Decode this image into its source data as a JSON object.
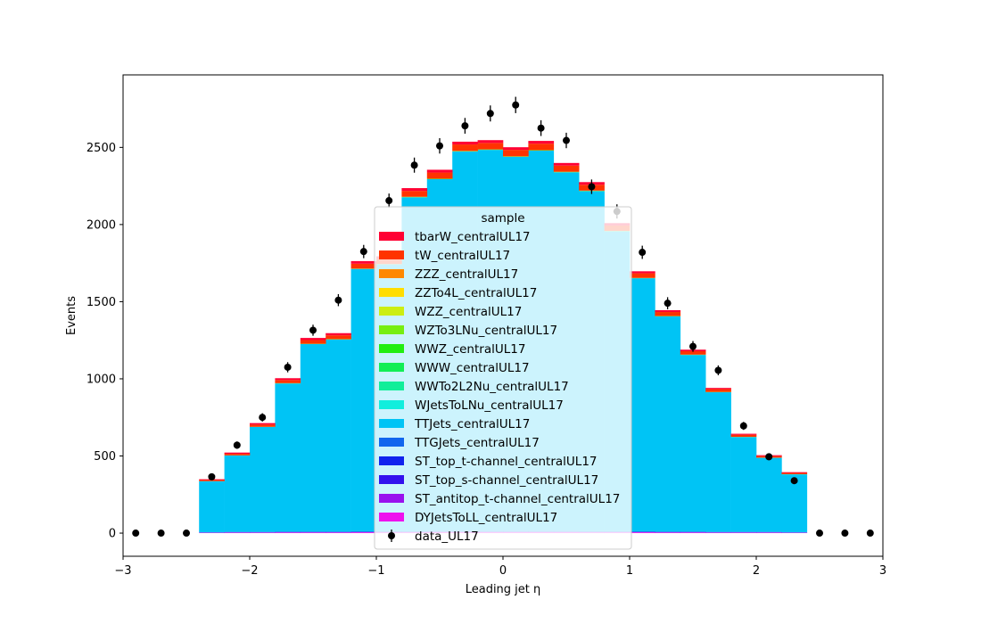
{
  "chart_data": {
    "type": "bar",
    "title": "",
    "xlabel": "Leading jet  η",
    "ylabel": "Events",
    "xlim": [
      -3,
      3
    ],
    "ylim": [
      -150,
      2970
    ],
    "xticks": [
      -3,
      -2,
      -1,
      0,
      1,
      2,
      3
    ],
    "xtick_labels": [
      "−3",
      "−2",
      "−1",
      "0",
      "1",
      "2",
      "3"
    ],
    "yticks": [
      0,
      500,
      1000,
      1500,
      2000,
      2500
    ],
    "ytick_labels": [
      "0",
      "500",
      "1000",
      "1500",
      "2000",
      "2500"
    ],
    "bin_edges": [
      -2.4,
      -2.2,
      -2.0,
      -1.8,
      -1.6,
      -1.4,
      -1.2,
      -1.0,
      -0.8,
      -0.6,
      -0.4,
      -0.2,
      0.0,
      0.2,
      0.4,
      0.6,
      0.8,
      1.0,
      1.2,
      1.4,
      1.6,
      1.8,
      2.0,
      2.2,
      2.4
    ],
    "grid": false,
    "legend": {
      "title": "sample",
      "placement": "center"
    },
    "stack_order": "bottom-to-top",
    "series": [
      {
        "name": "DYJetsToLL_centralUL17",
        "color": "#ee11ee",
        "values": [
          2,
          3,
          3,
          4,
          4,
          4,
          5,
          5,
          5,
          6,
          6,
          6,
          6,
          6,
          6,
          5,
          5,
          5,
          4,
          4,
          3,
          3,
          3,
          2
        ]
      },
      {
        "name": "ST_antitop_t-channel_centralUL17",
        "color": "#9911ee",
        "values": [
          1,
          1,
          1,
          1,
          1,
          1,
          1,
          1,
          1,
          1,
          1,
          1,
          1,
          1,
          1,
          1,
          1,
          1,
          1,
          1,
          1,
          1,
          1,
          1
        ]
      },
      {
        "name": "ST_top_s-channel_centralUL17",
        "color": "#3311ee",
        "values": [
          0,
          0,
          0,
          0,
          0,
          0,
          0,
          0,
          0,
          0,
          0,
          0,
          0,
          0,
          0,
          0,
          0,
          0,
          0,
          0,
          0,
          0,
          0,
          0
        ]
      },
      {
        "name": "ST_top_t-channel_centralUL17",
        "color": "#1122ee",
        "values": [
          1,
          1,
          1,
          1,
          1,
          1,
          1,
          1,
          1,
          1,
          1,
          1,
          1,
          1,
          1,
          1,
          1,
          1,
          1,
          1,
          1,
          1,
          1,
          1
        ]
      },
      {
        "name": "TTGJets_centralUL17",
        "color": "#1166ee",
        "values": [
          2,
          3,
          3,
          4,
          4,
          4,
          5,
          5,
          5,
          6,
          6,
          6,
          6,
          6,
          6,
          5,
          5,
          5,
          4,
          4,
          3,
          3,
          3,
          2
        ]
      },
      {
        "name": "TTJets_centralUL17",
        "color": "#00c4f5",
        "values": [
          330,
          495,
          680,
          960,
          1215,
          1245,
          1700,
          1730,
          2165,
          2280,
          2460,
          2470,
          2425,
          2465,
          2325,
          2205,
          1945,
          1640,
          1395,
          1145,
          905,
          615,
          480,
          375
        ]
      },
      {
        "name": "WJetsToLNu_centralUL17",
        "color": "#11eedd",
        "values": [
          0,
          0,
          0,
          0,
          0,
          0,
          0,
          0,
          0,
          0,
          0,
          0,
          0,
          0,
          0,
          0,
          0,
          0,
          0,
          0,
          0,
          0,
          0,
          0
        ]
      },
      {
        "name": "WWTo2L2Nu_centralUL17",
        "color": "#11ee99",
        "values": [
          0,
          0,
          0,
          0,
          0,
          0,
          0,
          0,
          0,
          0,
          0,
          0,
          0,
          0,
          0,
          0,
          0,
          0,
          0,
          0,
          0,
          0,
          0,
          0
        ]
      },
      {
        "name": "WWW_centralUL17",
        "color": "#11ee55",
        "values": [
          0,
          0,
          0,
          0,
          0,
          0,
          0,
          0,
          0,
          0,
          0,
          0,
          0,
          0,
          0,
          0,
          0,
          0,
          0,
          0,
          0,
          0,
          0,
          0
        ]
      },
      {
        "name": "WWZ_centralUL17",
        "color": "#22ee11",
        "values": [
          0,
          0,
          0,
          0,
          0,
          0,
          0,
          0,
          0,
          0,
          0,
          0,
          0,
          0,
          0,
          0,
          0,
          0,
          0,
          0,
          0,
          0,
          0,
          0
        ]
      },
      {
        "name": "WZTo3LNu_centralUL17",
        "color": "#77ee11",
        "values": [
          1,
          1,
          1,
          2,
          2,
          2,
          2,
          2,
          3,
          3,
          3,
          3,
          3,
          3,
          3,
          3,
          2,
          2,
          2,
          2,
          2,
          1,
          1,
          1
        ]
      },
      {
        "name": "WZZ_centralUL17",
        "color": "#ccee11",
        "values": [
          0,
          0,
          0,
          0,
          0,
          0,
          0,
          0,
          0,
          0,
          0,
          0,
          0,
          0,
          0,
          0,
          0,
          0,
          0,
          0,
          0,
          0,
          0,
          0
        ]
      },
      {
        "name": "ZZTo4L_centralUL17",
        "color": "#ffdd00",
        "values": [
          0,
          0,
          0,
          0,
          0,
          0,
          0,
          0,
          0,
          0,
          0,
          0,
          0,
          0,
          0,
          0,
          0,
          0,
          0,
          0,
          0,
          0,
          0,
          0
        ]
      },
      {
        "name": "ZZZ_centralUL17",
        "color": "#ff8800",
        "values": [
          0,
          0,
          0,
          0,
          0,
          0,
          0,
          0,
          0,
          0,
          0,
          0,
          0,
          0,
          0,
          0,
          0,
          0,
          0,
          0,
          0,
          0,
          0,
          0
        ]
      },
      {
        "name": "tW_centralUL17",
        "color": "#ff3300",
        "values": [
          7,
          10,
          14,
          20,
          24,
          25,
          32,
          33,
          38,
          40,
          42,
          42,
          42,
          42,
          40,
          38,
          35,
          30,
          26,
          22,
          18,
          13,
          10,
          8
        ]
      },
      {
        "name": "tbarW_centralUL17",
        "color": "#ff0033",
        "values": [
          5,
          8,
          10,
          12,
          14,
          14,
          17,
          17,
          18,
          18,
          18,
          18,
          17,
          18,
          17,
          17,
          15,
          13,
          12,
          10,
          8,
          7,
          6,
          5
        ]
      }
    ],
    "data_series": {
      "name": "data_UL17",
      "color": "#000000",
      "x": [
        -2.9,
        -2.7,
        -2.5,
        -2.3,
        -2.1,
        -1.9,
        -1.7,
        -1.5,
        -1.3,
        -1.1,
        -0.9,
        -0.7,
        -0.5,
        -0.3,
        -0.1,
        0.1,
        0.3,
        0.5,
        0.7,
        0.9,
        1.1,
        1.3,
        1.5,
        1.7,
        1.9,
        2.1,
        2.3,
        2.5,
        2.7,
        2.9
      ],
      "y": [
        0,
        0,
        0,
        365,
        570,
        750,
        1075,
        1315,
        1510,
        1825,
        2155,
        2385,
        2510,
        2640,
        2720,
        2775,
        2625,
        2545,
        2245,
        2085,
        1820,
        1490,
        1210,
        1055,
        695,
        495,
        340,
        0,
        0,
        0
      ],
      "yerr": [
        0,
        0,
        0,
        19,
        24,
        27,
        33,
        36,
        39,
        43,
        46,
        49,
        50,
        51,
        52,
        53,
        51,
        50,
        47,
        46,
        43,
        39,
        35,
        32,
        26,
        22,
        18,
        0,
        0,
        0
      ]
    }
  }
}
